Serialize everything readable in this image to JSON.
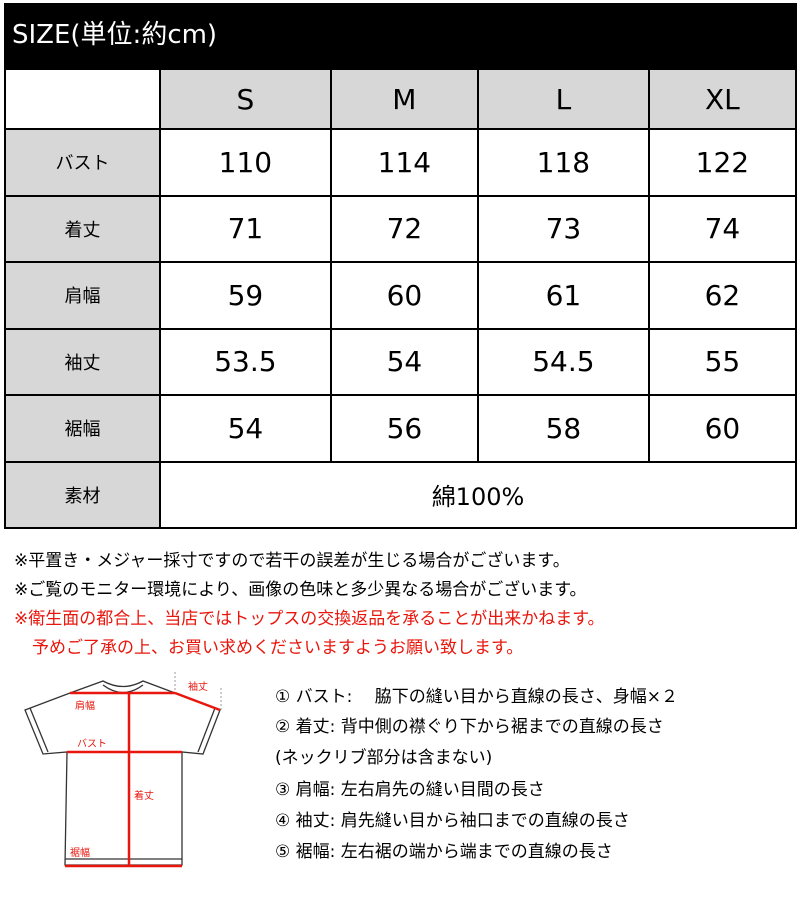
{
  "header": {
    "title": "SIZE(単位:約cm)"
  },
  "table": {
    "sizes": [
      "S",
      "M",
      "L",
      "XL"
    ],
    "rows": [
      {
        "label": "バスト",
        "values": [
          "110",
          "114",
          "118",
          "122"
        ]
      },
      {
        "label": "着丈",
        "values": [
          "71",
          "72",
          "73",
          "74"
        ]
      },
      {
        "label": "肩幅",
        "values": [
          "59",
          "60",
          "61",
          "62"
        ]
      },
      {
        "label": "袖丈",
        "values": [
          "53.5",
          "54",
          "54.5",
          "55"
        ]
      },
      {
        "label": "裾幅",
        "values": [
          "54",
          "56",
          "58",
          "60"
        ]
      }
    ],
    "material": {
      "label": "素材",
      "value": "綿100%"
    }
  },
  "notes": [
    "※平置き・メジャー採寸ですので若干の誤差が生じる場合がございます。",
    "※ご覧のモニター環境により、画像の色味と多少異なる場合がございます。",
    "※衛生面の都合上、当店ではトップスの交換返品を承ることが出来かねます。",
    "予めご了承の上、お買い求めくださいますようお願い致します。"
  ],
  "diagram": {
    "labels": {
      "shoulder": "肩幅",
      "bust": "バスト",
      "length": "着丈",
      "hem": "裾幅",
      "sleeve": "袖丈"
    },
    "accent": "#e8160c"
  },
  "descriptions": [
    "① バスト:　 脇下の縫い目から直線の長さ、身幅×２",
    "② 着丈:  背中側の襟ぐり下から裾までの直線の長さ",
    "(ネックリブ部分は含まない)",
    "③ 肩幅:  左右肩先の縫い目間の長さ",
    "④ 袖丈:  肩先縫い目から袖口までの直線の長さ",
    "⑤ 裾幅:  左右裾の端から端までの直線の長さ"
  ]
}
